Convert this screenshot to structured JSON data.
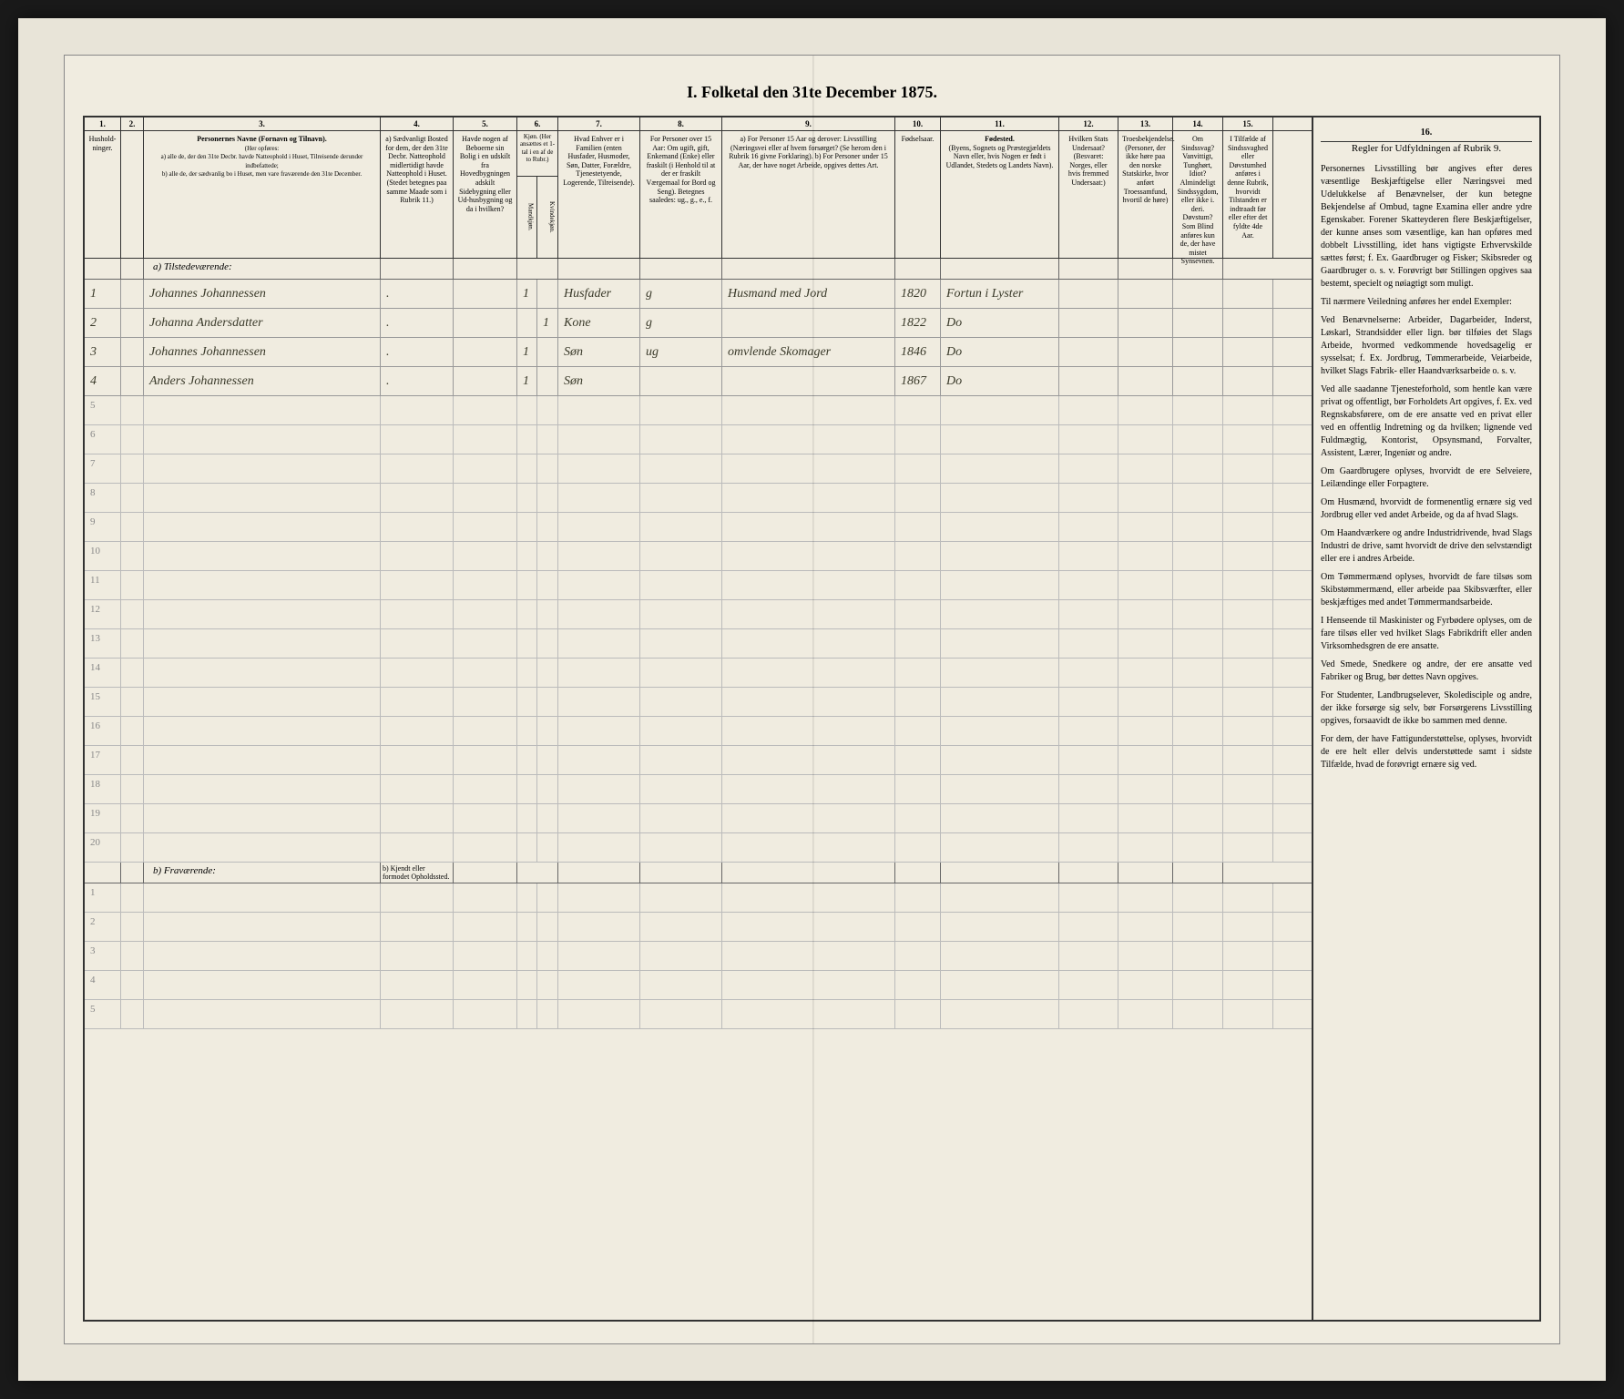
{
  "title": "I. Folketal den 31te December 1875.",
  "columns": {
    "nums": [
      "1.",
      "2.",
      "3.",
      "4.",
      "5.",
      "6.",
      "7.",
      "8.",
      "9.",
      "10.",
      "11.",
      "12.",
      "13.",
      "14.",
      "15.",
      "16."
    ],
    "h1": "Hushold-ninger.",
    "h2": "",
    "h3_title": "Personernes Navne (Fornavn og Tilnavn).",
    "h3_sub": "(Her opføres:\na) alle de, der den 31te Decbr. havde Natteophold i Huset, Tilreisende derunder indbefattede;\nb) alle de, der sædvanlig bo i Huset, men vare fraværende den 31te December.",
    "h4": "a) Sædvanligt Bosted for dem, der den 31te Decbr. Natteophold midlertidigt havde Natteophold i Huset. (Stedet betegnes paa samme Maade som i Rubrik 11.)",
    "h5": "Havde nogen af Beboerne sin Bolig i en udskilt fra Hovedbygningen adskilt Sidebygning eller Ud-husbygning og da i hvilken?",
    "h6": "Kjøn. (Her ansættes et 1-tal i en af de to Rubr.)",
    "h6a": "Mandkjøn.",
    "h6b": "Kvindekjøn.",
    "h7": "Hvad Enhver er i Familien (enten Husfader, Husmoder, Søn, Datter, Forældre, Tjenestetyende, Logerende, Tilreisende).",
    "h8": "For Personer over 15 Aar: Om ugift, gift, Enkemand (Enke) eller fraskilt (i Henhold til at der er fraskilt Værgemaal for Bord og Seng). Betegnes saaledes: ug., g., e., f.",
    "h9": "a) For Personer 15 Aar og derover: Livsstilling (Næringsvei eller af hvem forsørget? (Se herom den i Rubrik 16 givne Forklaring). b) For Personer under 15 Aar, der have noget Arbeide, opgives dettes Art.",
    "h10": "Fødselsaar.",
    "h11_title": "Fødested.",
    "h11_sub": "(Byens, Sognets og Præstegjældets Navn eller, hvis Nogen er født i Udlandet, Stedets og Landets Navn).",
    "h12": "Hvilken Stats Undersaat? (Besvaret: Norges, eller hvis fremmed Undersaat:)",
    "h13": "Troesbekjendelse. (Personer, der ikke høre paa den norske Statskirke, hvor anført Troessamfund, hvortil de høre)",
    "h14": "Om Sindssvag? Vanvittigt, Tunghørt, Idiot? Almindeligt Sindssygdom, eller ikke i. deri. Døvstum? Som Blind anføres kun de, der have mistet Synsevnen.",
    "h15": "I Tilfælde af Sindssvaghed eller Døvstumhed anføres i denne Rubrik, hvorvidt Tilstanden er indtraadt før eller efter det fyldte 4de Aar.",
    "h16": "Regler for Udfyldningen af Rubrik 9."
  },
  "section_a": "a) Tilstedeværende:",
  "section_b": "b) Fraværende:",
  "section_b_col4": "b) Kjendt eller formodet Opholdssted.",
  "rows": [
    {
      "n": "1",
      "name": "Johannes Johannessen",
      "c4": ".",
      "c6a": "1",
      "c6b": "",
      "role": "Husfader",
      "marital": "g",
      "occ": "Husmand med Jord",
      "year": "1820",
      "place": "Fortun i Lyster"
    },
    {
      "n": "2",
      "name": "Johanna Andersdatter",
      "c4": ".",
      "c6a": "",
      "c6b": "1",
      "role": "Kone",
      "marital": "g",
      "occ": "",
      "year": "1822",
      "place": "Do"
    },
    {
      "n": "3",
      "name": "Johannes Johannessen",
      "c4": ".",
      "c6a": "1",
      "c6b": "",
      "role": "Søn",
      "marital": "ug",
      "occ": "omvlende Skomager",
      "year": "1846",
      "place": "Do"
    },
    {
      "n": "4",
      "name": "Anders Johannessen",
      "c4": ".",
      "c6a": "1",
      "c6b": "",
      "role": "Søn",
      "marital": "",
      "occ": "",
      "year": "1867",
      "place": "Do"
    }
  ],
  "empty_a": [
    "5",
    "6",
    "7",
    "8",
    "9",
    "10",
    "11",
    "12",
    "13",
    "14",
    "15",
    "16",
    "17",
    "18",
    "19",
    "20"
  ],
  "empty_b": [
    "1",
    "2",
    "3",
    "4",
    "5"
  ],
  "sidebar": {
    "title": "Regler for Udfyldningen af Rubrik 9.",
    "paragraphs": [
      "Personernes Livsstilling bør angives efter deres væsentlige Beskjæftigelse eller Næringsvei med Udelukkelse af Benævnelser, der kun betegne Bekjendelse af Ombud, tagne Examina eller andre ydre Egenskaber. Forener Skatteyderen flere Beskjæftigelser, der kunne anses som væsentlige, kan han opføres med dobbelt Livsstilling, idet hans vigtigste Erhvervskilde sættes først; f. Ex. Gaardbruger og Fisker; Skibsreder og Gaardbruger o. s. v. Forøvrigt bør Stillingen opgives saa bestemt, specielt og nøiagtigt som muligt.",
      "Til nærmere Veiledning anføres her endel Exempler:",
      "Ved Benævnelserne: Arbeider, Dagarbeider, Inderst, Løskarl, Strandsidder eller lign. bør tilføies det Slags Arbeide, hvormed vedkommende hovedsagelig er sysselsat; f. Ex. Jordbrug, Tømmerarbeide, Veiarbeide, hvilket Slags Fabrik- eller Haandværksarbeide o. s. v.",
      "Ved alle saadanne Tjenesteforhold, som hentle kan være privat og offentligt, bør Forholdets Art opgives, f. Ex. ved Regnskabsførere, om de ere ansatte ved en privat eller ved en offentlig Indretning og da hvilken; lignende ved Fuldmægtig, Kontorist, Opsynsmand, Forvalter, Assistent, Lærer, Ingeniør og andre.",
      "Om Gaardbrugere oplyses, hvorvidt de ere Selveiere, Leilændinge eller Forpagtere.",
      "Om Husmænd, hvorvidt de formenentlig ernære sig ved Jordbrug eller ved andet Arbeide, og da af hvad Slags.",
      "Om Haandværkere og andre Industridrivende, hvad Slags Industri de drive, samt hvorvidt de drive den selvstændigt eller ere i andres Arbeide.",
      "Om Tømmermænd oplyses, hvorvidt de fare tilsøs som Skibstømmermænd, eller arbeide paa Skibsværfter, eller beskjæftiges med andet Tømmermandsarbeide.",
      "I Henseende til Maskinister og Fyrbødere oplyses, om de fare tilsøs eller ved hvilket Slags Fabrikdrift eller anden Virksomhedsgren de ere ansatte.",
      "Ved Smede, Snedkere og andre, der ere ansatte ved Fabriker og Brug, bør dettes Navn opgives.",
      "For Studenter, Landbrugselever, Skoledisciple og andre, der ikke forsørge sig selv, bør Forsørgerens Livsstilling opgives, forsaavidt de ikke bo sammen med denne.",
      "For dem, der have Fattigunderstøttelse, oplyses, hvorvidt de ere helt eller delvis understøttede samt i sidste Tilfælde, hvad de forøvrigt ernære sig ved."
    ]
  }
}
